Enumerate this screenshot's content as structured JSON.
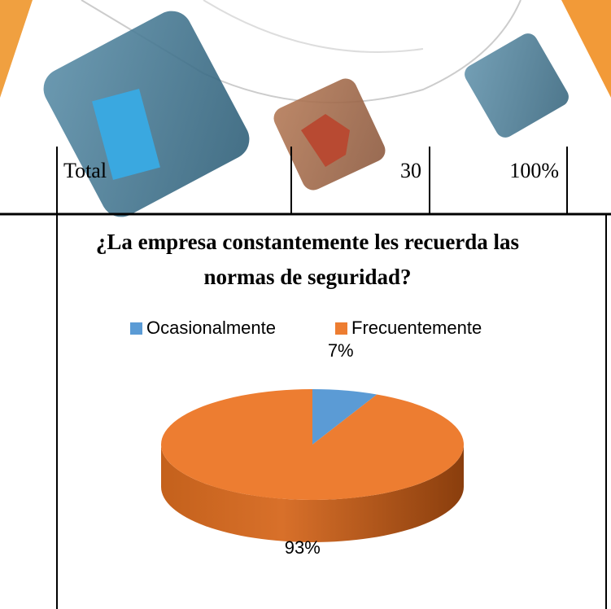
{
  "table": {
    "rows": [
      [
        "Total",
        "30",
        "100%"
      ]
    ]
  },
  "chart_data": {
    "type": "pie",
    "title": "¿La empresa constantemente les recuerda las normas de seguridad?",
    "categories": [
      "Ocasionalmente",
      "Frecuentemente"
    ],
    "values": [
      7,
      93
    ],
    "value_labels": [
      "7%",
      "93%"
    ],
    "colors": [
      "#5b9bd5",
      "#ed7d31"
    ],
    "legend": "top"
  }
}
